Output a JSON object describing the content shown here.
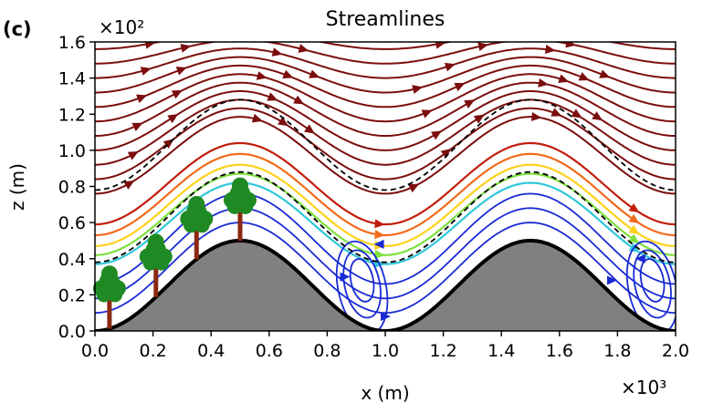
{
  "chart_data": {
    "type": "streamline",
    "panel_label": "(c)",
    "title": "Streamlines",
    "xlabel": "x (m)",
    "ylabel": "z (m)",
    "x_multiplier": "×10³",
    "y_multiplier": "×10²",
    "xlim": [
      0,
      2000
    ],
    "ylim": [
      0,
      160
    ],
    "xticks": [
      "0.0",
      "0.2",
      "0.4",
      "0.6",
      "0.8",
      "1.0",
      "1.2",
      "1.4",
      "1.6",
      "1.8",
      "2.0"
    ],
    "yticks": [
      "0.0",
      "0.2",
      "0.4",
      "0.6",
      "0.8",
      "1.0",
      "1.2",
      "1.4",
      "1.6"
    ],
    "terrain": {
      "shape": "cosine hills",
      "peaks_x": [
        500,
        1500
      ],
      "peak_height": 50,
      "fill": "#808080",
      "edge": "#000000"
    },
    "canopy_top": {
      "style": "dashed",
      "offset": 38
    },
    "upper_dashed": {
      "style": "dashed",
      "offset": 78
    },
    "trees": {
      "count": 4,
      "x": [
        50,
        210,
        350,
        500
      ],
      "color": "#1f8a24",
      "trunk_color": "#8a2a12"
    },
    "colors": {
      "high_speed": "#7b0d0d",
      "mid_speed": [
        "#c21d0c",
        "#f26a1b",
        "#ffd11a",
        "#7ee03e",
        "#31c7d9"
      ],
      "low_speed": "#1a2bd4"
    },
    "streamline_offsets_flow": [
      42,
      47,
      52,
      58,
      64
    ],
    "streamline_offsets_dark": [
      76,
      84,
      92,
      100,
      108,
      116,
      124,
      132,
      140,
      148,
      156
    ]
  }
}
